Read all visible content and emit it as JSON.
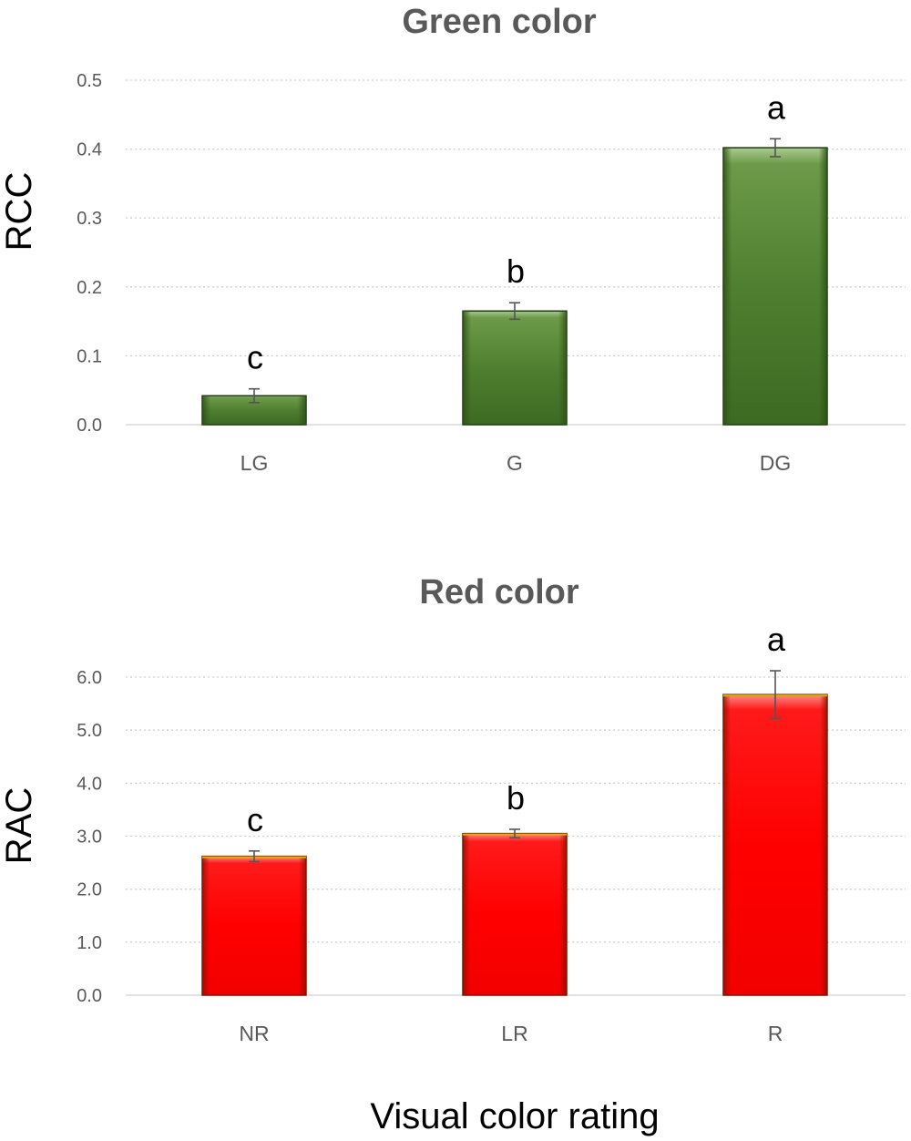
{
  "chart_data": [
    {
      "type": "bar",
      "title": "Green color",
      "ylabel": "RCC",
      "categories": [
        "LG",
        "G",
        "DG"
      ],
      "values": [
        0.042,
        0.165,
        0.402
      ],
      "errors": [
        0.01,
        0.012,
        0.013
      ],
      "significance": [
        "c",
        "b",
        "a"
      ],
      "ylim": [
        0,
        0.5
      ],
      "yticks": [
        "0.0",
        "0.1",
        "0.2",
        "0.3",
        "0.4",
        "0.5"
      ],
      "ytick_values": [
        0,
        0.1,
        0.2,
        0.3,
        0.4,
        0.5
      ],
      "grid": true,
      "bar_color": "#5a8a3a",
      "bar_edge_color": "#1f3a10",
      "bar_highlight": "#8fb872"
    },
    {
      "type": "bar",
      "title": "Red color",
      "ylabel": "RAC",
      "categories": [
        "NR",
        "LR",
        "R"
      ],
      "values": [
        2.62,
        3.05,
        5.67
      ],
      "errors": [
        0.1,
        0.08,
        0.45
      ],
      "significance": [
        "c",
        "b",
        "a"
      ],
      "ylim": [
        0,
        6.0
      ],
      "yticks": [
        "0.0",
        "1.0",
        "2.0",
        "3.0",
        "4.0",
        "5.0",
        "6.0"
      ],
      "ytick_values": [
        0,
        1,
        2,
        3,
        4,
        5,
        6
      ],
      "grid": true,
      "bar_color": "#ff0000",
      "bar_edge_color": "#7a1a00",
      "bar_highlight": "#ff6a6a"
    }
  ],
  "xlabel": "Visual color rating"
}
